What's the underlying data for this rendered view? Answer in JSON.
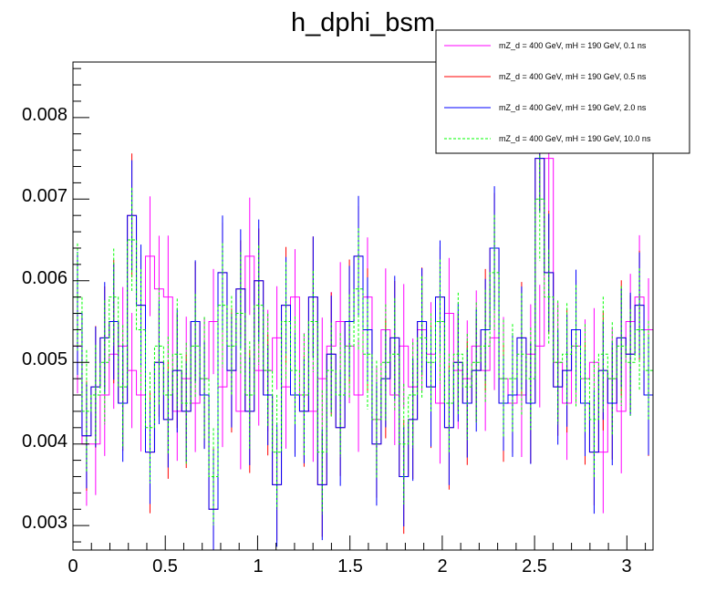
{
  "chart_data": {
    "type": "line",
    "title": "h_dphi_bsm",
    "xlabel": "",
    "ylabel": "",
    "xlim": [
      0,
      3.1416
    ],
    "ylim": [
      0.0027,
      0.00868
    ],
    "x_ticks": [
      "0",
      "0.5",
      "1",
      "1.5",
      "2",
      "2.5",
      "3"
    ],
    "y_ticks": [
      "0.003",
      "0.004",
      "0.005",
      "0.006",
      "0.007",
      "0.008"
    ],
    "legend_position": "top-right",
    "n_bins": 64,
    "series": [
      {
        "name": "mZ_d = 400 GeV, mH = 190 GeV, 0.1 ns",
        "color": "#ff00ff",
        "style": "solid",
        "values": [
          0.0052,
          0.004,
          0.004,
          0.0046,
          0.0051,
          0.0052,
          0.0049,
          0.0046,
          0.0063,
          0.0059,
          0.0058,
          0.0044,
          0.0048,
          0.0045,
          0.0048,
          0.0055,
          0.0047,
          0.0049,
          0.0044,
          0.0063,
          0.0049,
          0.0049,
          0.0053,
          0.0047,
          0.0058,
          0.0046,
          0.0044,
          0.0048,
          0.0052,
          0.0055,
          0.0052,
          0.0046,
          0.0058,
          0.0043,
          0.0054,
          0.0046,
          0.0052,
          0.0047,
          0.0054,
          0.0051,
          0.0045,
          0.0056,
          0.0049,
          0.0048,
          0.0052,
          0.0049,
          0.0053,
          0.0048,
          0.0045,
          0.0046,
          0.0051,
          0.0052,
          0.0075,
          0.005,
          0.0045,
          0.0052,
          0.0048,
          0.005,
          0.0039,
          0.0048,
          0.0044,
          0.0055,
          0.0058,
          0.0054
        ]
      },
      {
        "name": "mZ_d = 400 GeV, mH = 190 GeV, 0.5 ns",
        "color": "#ff0000",
        "style": "solid",
        "values": [
          0.0056,
          0.0041,
          0.0047,
          0.0053,
          0.0055,
          0.0045,
          0.0068,
          0.0057,
          0.0039,
          0.005,
          0.0043,
          0.0049,
          0.0044,
          0.0055,
          0.0046,
          0.0032,
          0.0061,
          0.0049,
          0.0059,
          0.0044,
          0.006,
          0.0046,
          0.0035,
          0.0057,
          0.0046,
          0.0044,
          0.0058,
          0.0035,
          0.0051,
          0.0042,
          0.0055,
          0.0063,
          0.0054,
          0.004,
          0.0048,
          0.0053,
          0.0036,
          0.0043,
          0.0055,
          0.0047,
          0.0058,
          0.0042,
          0.005,
          0.0045,
          0.0049,
          0.0054,
          0.0064,
          0.0045,
          0.0046,
          0.0053,
          0.0045,
          0.0075,
          0.0061,
          0.0047,
          0.0049,
          0.0054,
          0.0045,
          0.0039,
          0.0049,
          0.0045,
          0.0053,
          0.0051,
          0.0057,
          0.0046
        ]
      },
      {
        "name": "mZ_d = 400 GeV, mH = 190 GeV, 2.0 ns",
        "color": "#0000ff",
        "style": "solid",
        "values": [
          0.0056,
          0.0041,
          0.0047,
          0.0053,
          0.0055,
          0.0045,
          0.0068,
          0.0057,
          0.0039,
          0.005,
          0.0043,
          0.0049,
          0.0044,
          0.0055,
          0.0046,
          0.0032,
          0.0061,
          0.0049,
          0.0059,
          0.0044,
          0.006,
          0.0046,
          0.0035,
          0.0057,
          0.0046,
          0.0044,
          0.0058,
          0.0035,
          0.0051,
          0.0042,
          0.0055,
          0.0063,
          0.0054,
          0.004,
          0.0048,
          0.0053,
          0.0036,
          0.0043,
          0.0055,
          0.0047,
          0.0058,
          0.0042,
          0.005,
          0.0045,
          0.0049,
          0.0054,
          0.0064,
          0.0045,
          0.0046,
          0.0053,
          0.0045,
          0.0075,
          0.0061,
          0.0047,
          0.0049,
          0.0054,
          0.0045,
          0.0039,
          0.0049,
          0.0045,
          0.0053,
          0.0051,
          0.0057,
          0.0046
        ]
      },
      {
        "name": "mZ_d = 400 GeV, mH = 190 GeV, 10.0 ns",
        "color": "#00ff00",
        "style": "dashed",
        "values": [
          0.0058,
          0.0044,
          0.0046,
          0.005,
          0.0058,
          0.0047,
          0.0065,
          0.0054,
          0.0042,
          0.0052,
          0.0046,
          0.0051,
          0.0045,
          0.0052,
          0.0048,
          0.0036,
          0.0057,
          0.0052,
          0.0056,
          0.0046,
          0.0057,
          0.0049,
          0.0039,
          0.0055,
          0.0049,
          0.0046,
          0.0055,
          0.0039,
          0.0049,
          0.0046,
          0.0052,
          0.0059,
          0.0051,
          0.0043,
          0.005,
          0.0051,
          0.004,
          0.0046,
          0.0053,
          0.005,
          0.0055,
          0.0045,
          0.0051,
          0.0047,
          0.005,
          0.0052,
          0.0061,
          0.0048,
          0.0048,
          0.0051,
          0.0048,
          0.007,
          0.0058,
          0.005,
          0.0051,
          0.0052,
          0.0048,
          0.0043,
          0.0051,
          0.0048,
          0.0052,
          0.005,
          0.0054,
          0.0049
        ]
      }
    ]
  }
}
